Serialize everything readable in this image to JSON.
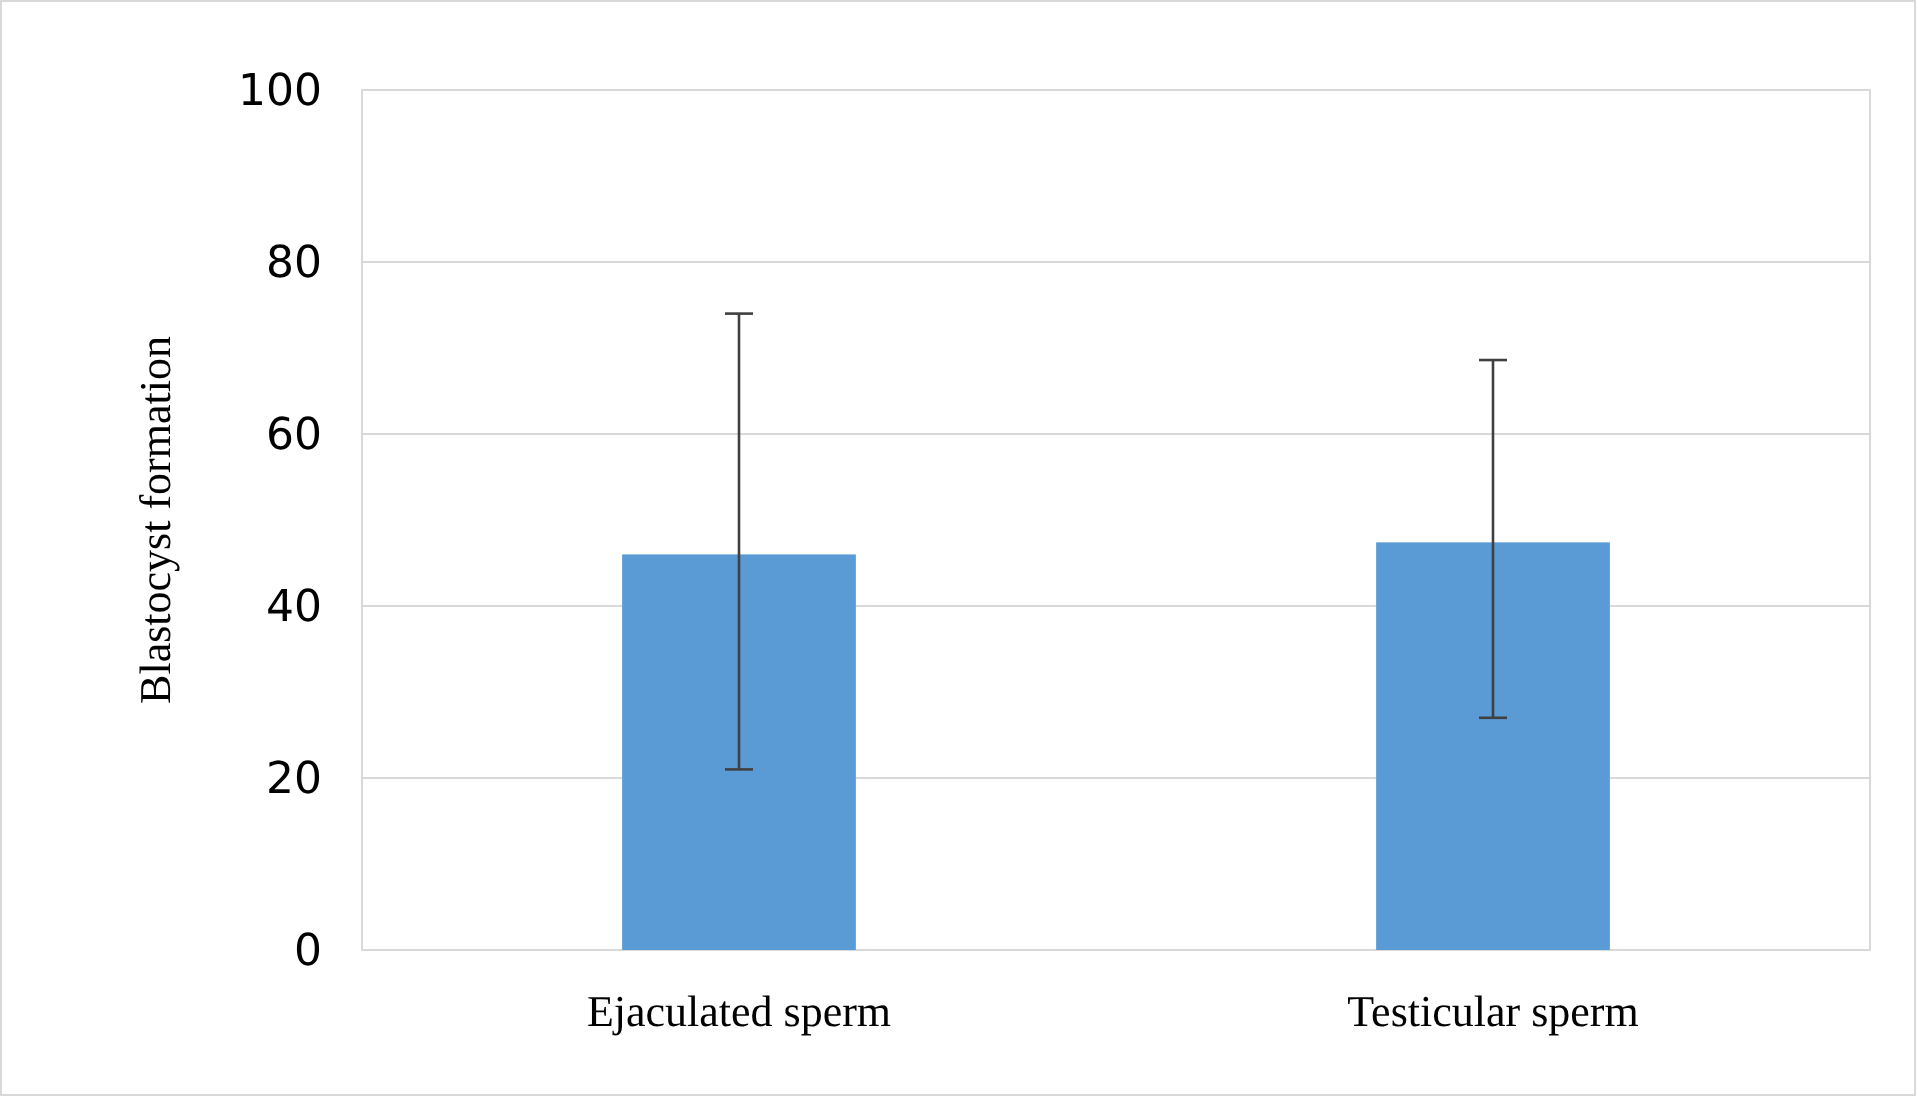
{
  "chart_data": {
    "type": "bar",
    "ylabel": "Blastocyst formation",
    "categories": [
      "Ejaculated sperm",
      "Testicular sperm"
    ],
    "values": [
      46,
      47.4
    ],
    "color": "#5b9bd5",
    "errors": [
      [
        21,
        74
      ],
      [
        27,
        68.6
      ]
    ],
    "ylim": [
      0,
      100
    ],
    "yticks": [
      0,
      20,
      40,
      60,
      80,
      100
    ],
    "grid": "y"
  }
}
